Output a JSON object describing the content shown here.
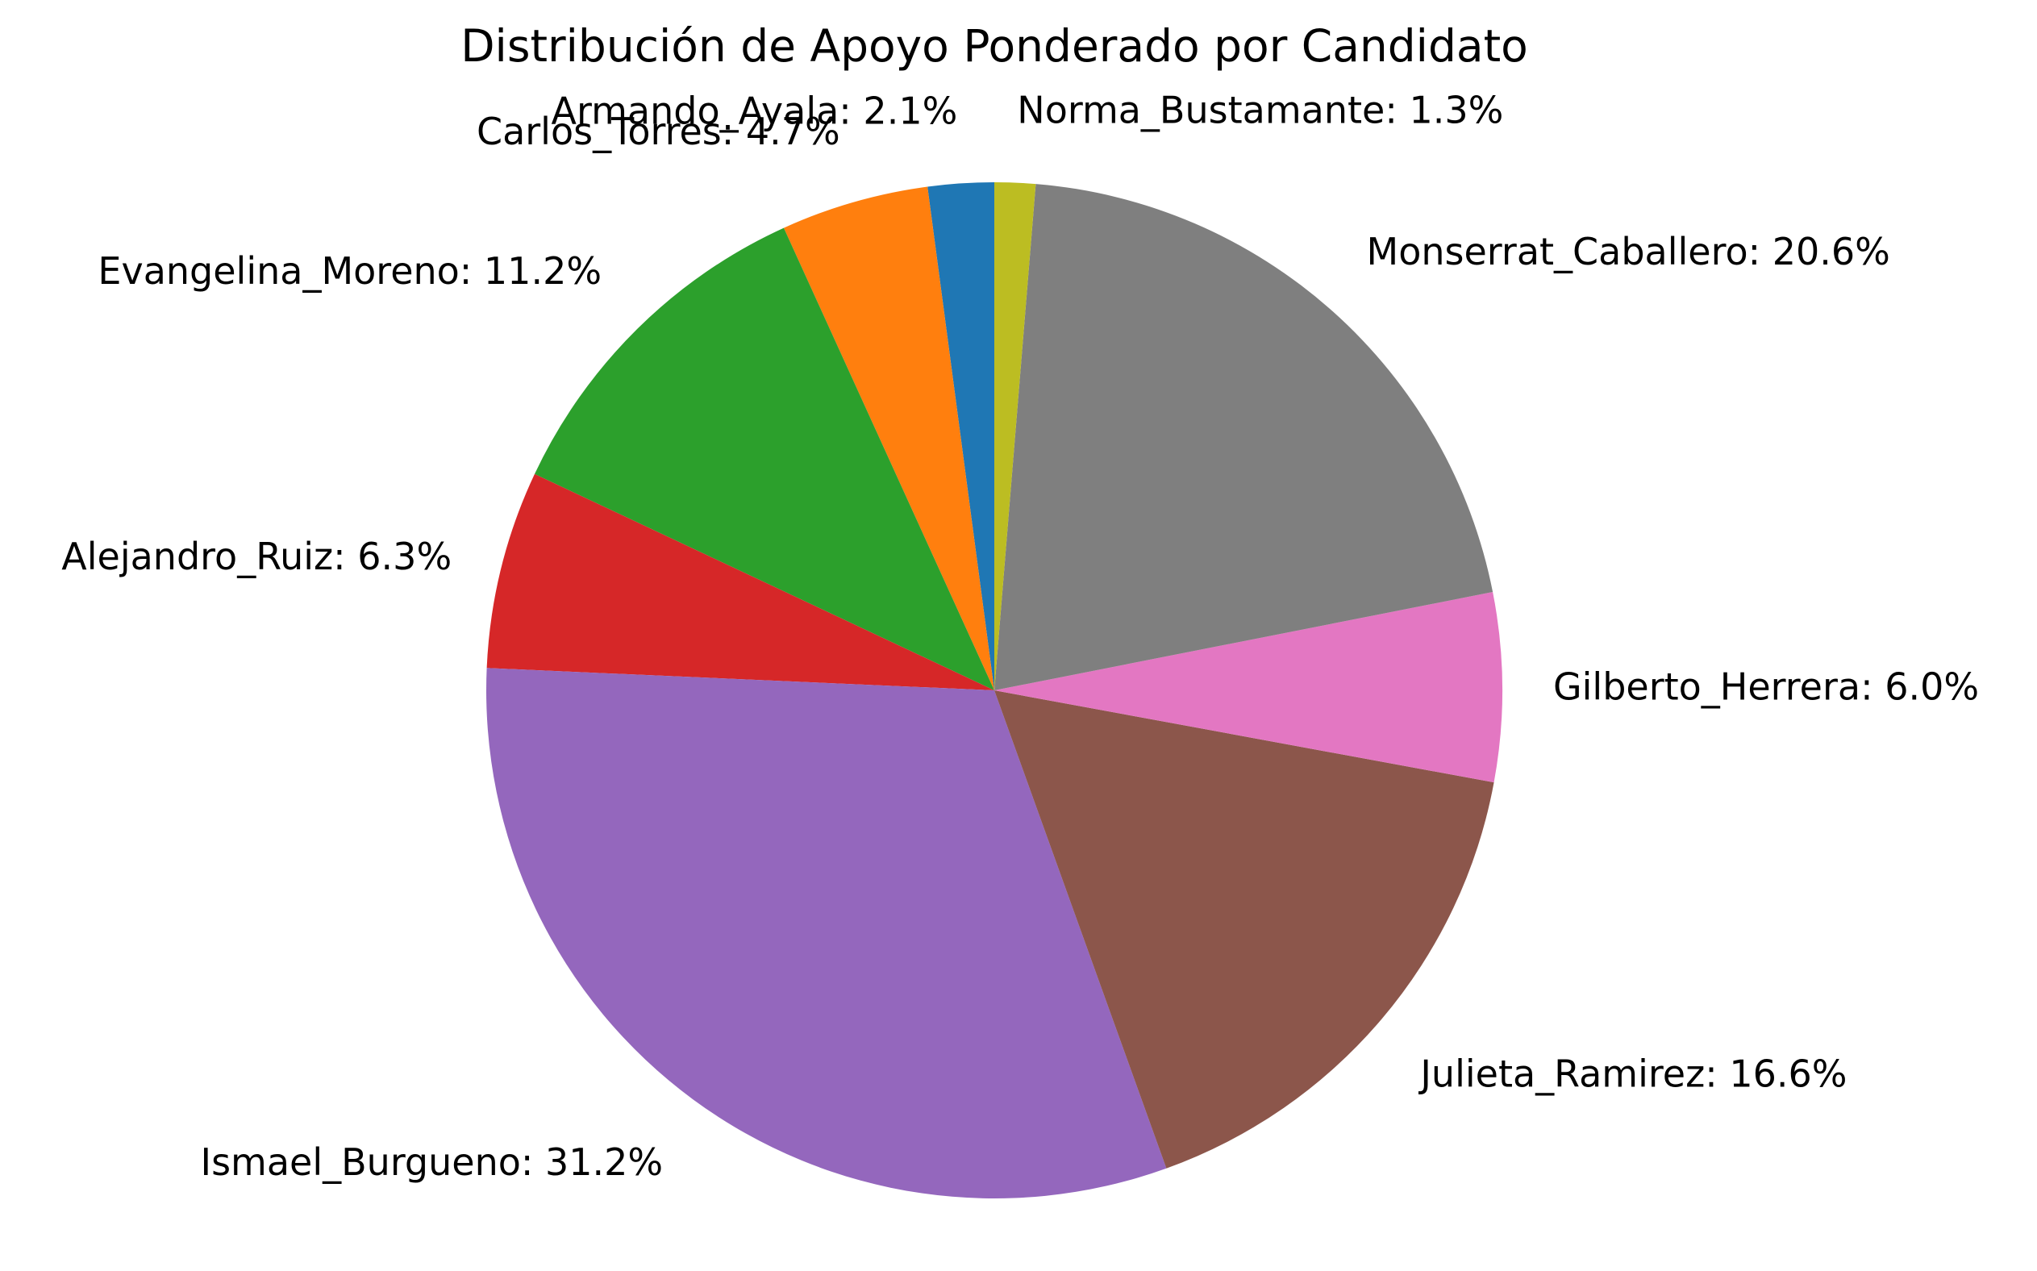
{
  "chart_data": {
    "type": "pie",
    "title": "Distribución de Apoyo Ponderado por Candidato",
    "start_angle_deg": 90,
    "direction": "counterclockwise",
    "label_format": "{name}: {pct}%",
    "slices": [
      {
        "name": "Armando_Ayala",
        "value": 2.1,
        "color": "#1f77b4"
      },
      {
        "name": "Carlos_Torres",
        "value": 4.7,
        "color": "#ff7f0e"
      },
      {
        "name": "Evangelina_Moreno",
        "value": 11.2,
        "color": "#2ca02c"
      },
      {
        "name": "Alejandro_Ruiz",
        "value": 6.3,
        "color": "#d62728"
      },
      {
        "name": "Ismael_Burgueno",
        "value": 31.2,
        "color": "#9467bd"
      },
      {
        "name": "Julieta_Ramirez",
        "value": 16.6,
        "color": "#8c564b"
      },
      {
        "name": "Gilberto_Herrera",
        "value": 6.0,
        "color": "#e377c2"
      },
      {
        "name": "Monserrat_Caballero",
        "value": 20.6,
        "color": "#7f7f7f"
      },
      {
        "name": "Norma_Bustamante",
        "value": 1.3,
        "color": "#bcbd22"
      }
    ]
  }
}
